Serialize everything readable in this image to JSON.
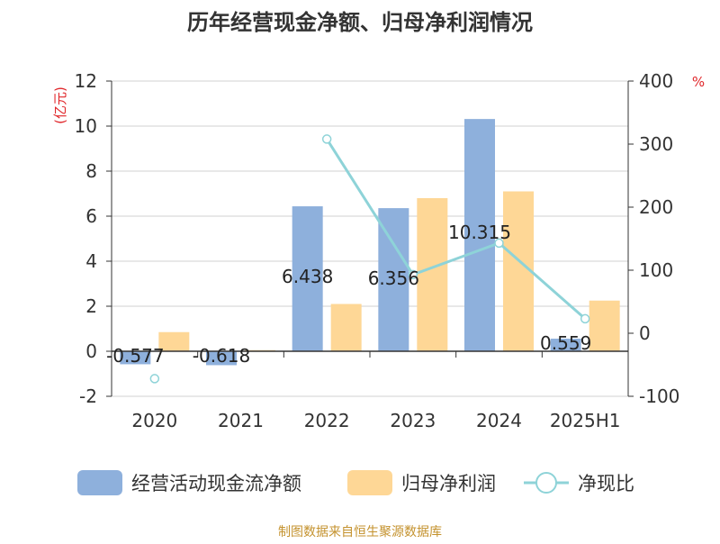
{
  "chart_data": {
    "type": "bar",
    "title": "历年经营现金净额、归母净利润情况",
    "y_left_unit": "(亿元)",
    "y_right_unit": "%",
    "categories": [
      "2020",
      "2021",
      "2022",
      "2023",
      "2024",
      "2025H1"
    ],
    "y_left_ticks": [
      "12",
      "10",
      "8",
      "6",
      "4",
      "2",
      "0",
      "-2"
    ],
    "y_right_ticks": [
      "400",
      "300",
      "200",
      "100",
      "0",
      "-100"
    ],
    "y_left_lim": [
      -2,
      12
    ],
    "y_right_lim": [
      -100,
      400
    ],
    "grid": true,
    "legend_position": "bottom",
    "series": [
      {
        "name": "经营活动现金流净额",
        "type": "bar",
        "axis": "left",
        "color": "#8eb0dc",
        "values": [
          -0.577,
          -0.618,
          6.438,
          6.356,
          10.315,
          0.559
        ],
        "labels": [
          "-0.577",
          "-0.618",
          "6.438",
          "6.356",
          "10.315",
          "0.559"
        ]
      },
      {
        "name": "归母净利润",
        "type": "bar",
        "axis": "left",
        "color": "#fed796",
        "values": [
          0.85,
          0.05,
          2.1,
          6.8,
          7.1,
          2.25
        ]
      },
      {
        "name": "净现比",
        "type": "line",
        "axis": "right",
        "color": "#8ed3d8",
        "values": [
          -72,
          null,
          308,
          93,
          143,
          23
        ]
      }
    ],
    "source": "制图数据来自恒生聚源数据库"
  }
}
